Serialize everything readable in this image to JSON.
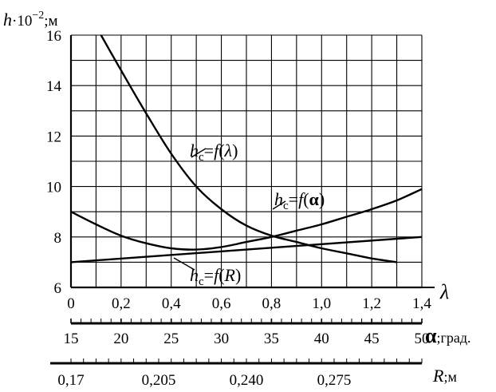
{
  "chart_data": {
    "type": "line",
    "y_axis": {
      "label_var": "h",
      "label_rest": "·10",
      "label_exp": "−2",
      "label_unit": ";м",
      "range": [
        6,
        16
      ],
      "ticks": [
        "6",
        "8",
        "10",
        "12",
        "14",
        "16"
      ],
      "tick_values": [
        6,
        8,
        10,
        12,
        14,
        16
      ]
    },
    "x_axes": [
      {
        "id": "lambda",
        "label": "λ",
        "range": [
          0,
          1.4
        ],
        "ticks": [
          "0",
          "0,2",
          "0,4",
          "0,6",
          "0,8",
          "1,0",
          "1,2",
          "1,4"
        ],
        "tick_values": [
          0,
          0.2,
          0.4,
          0.6,
          0.8,
          1.0,
          1.2,
          1.4
        ]
      },
      {
        "id": "alpha",
        "label_symbol": "α",
        "label_unit": ";град.",
        "range": [
          15,
          50
        ],
        "ticks": [
          "15",
          "20",
          "25",
          "30",
          "35",
          "40",
          "45",
          "50"
        ],
        "tick_values": [
          15,
          20,
          25,
          30,
          35,
          40,
          45,
          50
        ]
      },
      {
        "id": "R",
        "label_var": "R",
        "label_unit": ";м",
        "range": [
          0.17,
          0.31
        ],
        "ticks": [
          "0,17",
          "0,205",
          "0,240",
          "0,275"
        ],
        "tick_values": [
          0.17,
          0.205,
          0.24,
          0.275
        ]
      }
    ],
    "series": [
      {
        "name": "hc=f(λ)",
        "axis": "lambda",
        "x": [
          0.12,
          0.2,
          0.3,
          0.4,
          0.5,
          0.6,
          0.7,
          0.8,
          0.9,
          1.0,
          1.1,
          1.2,
          1.3
        ],
        "y": [
          16.0,
          14.6,
          12.9,
          11.3,
          10.0,
          9.1,
          8.45,
          8.05,
          7.8,
          7.55,
          7.35,
          7.15,
          7.0
        ]
      },
      {
        "name": "hc=f(α)",
        "axis": "alpha",
        "x": [
          15,
          17.5,
          20,
          22.5,
          25,
          27.5,
          30,
          32.5,
          35,
          37.5,
          40,
          42.5,
          45,
          47.5,
          50
        ],
        "y": [
          9.0,
          8.5,
          8.05,
          7.75,
          7.55,
          7.5,
          7.6,
          7.8,
          8.0,
          8.25,
          8.5,
          8.8,
          9.1,
          9.45,
          9.9
        ]
      },
      {
        "name": "hc=f(R)",
        "axis": "R",
        "x": [
          0.17,
          0.31
        ],
        "y": [
          7.0,
          8.0
        ]
      }
    ],
    "annotations": {
      "lambda": {
        "h": "h",
        "sub": "c",
        "eq": "=",
        "f": "f",
        "open": "(",
        "arg": "λ",
        "close": ")"
      },
      "alpha": {
        "h": "h",
        "sub": "c",
        "eq": "=",
        "f": "f",
        "open": "(",
        "arg": "α",
        "close": ")"
      },
      "R": {
        "h": "h",
        "sub": "c",
        "eq": "=",
        "f": "f",
        "open": "(",
        "arg": "R",
        "close": ")"
      }
    },
    "grid": true,
    "line_color": "#000000"
  }
}
